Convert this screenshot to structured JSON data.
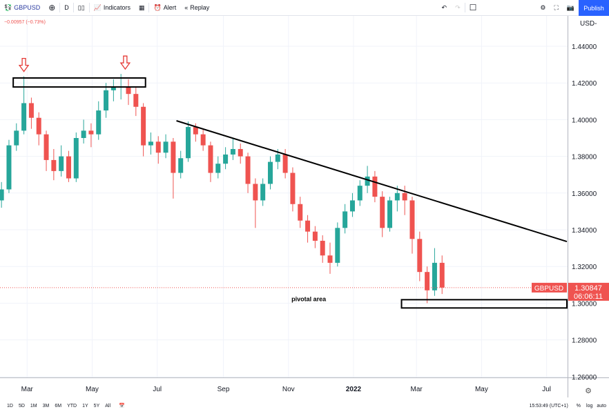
{
  "toolbar": {
    "symbol": "GBPUSD",
    "interval": "D",
    "indicators": "Indicators",
    "alert": "Alert",
    "replay": "Replay",
    "publish": "Publish",
    "icons": [
      "symbol-logo-icon",
      "add-compare-icon",
      "candles-style-icon",
      "indicators-icon",
      "templates-icon",
      "alert-icon",
      "replay-icon",
      "undo-icon",
      "redo-icon",
      "fullscreen-toggle-icon",
      "settings-icon",
      "fullscreen-icon",
      "camera-icon"
    ]
  },
  "legend": {
    "change": "−0.00957 (−0.73%)"
  },
  "price_scale": {
    "currency": "USD",
    "last_symbol": "GBPUSD",
    "last_price": "1.30847",
    "countdown": "06:06:11"
  },
  "bottom": {
    "ranges": [
      "1D",
      "5D",
      "1M",
      "3M",
      "6M",
      "YTD",
      "1Y",
      "5Y",
      "All"
    ],
    "time": "15:53:49 (UTC+1)",
    "pct": "%",
    "log": "log",
    "auto": "auto"
  },
  "colors": {
    "up": "#26a69a",
    "down": "#ef5350",
    "accent": "#2962ff",
    "annotation": "#000000",
    "arrow": "#e53935"
  },
  "chart_data": {
    "type": "candlestick",
    "title": "",
    "ylim": [
      1.255,
      1.455
    ],
    "yticks": [
      "1.44000",
      "1.42000",
      "1.40000",
      "1.38000",
      "1.36000",
      "1.34000",
      "1.32000",
      "1.30000",
      "1.28000",
      "1.26000"
    ],
    "xticks": [
      {
        "label": "Mar",
        "date": "2021-03-01"
      },
      {
        "label": "May",
        "date": "2021-05-01"
      },
      {
        "label": "Jul",
        "date": "2021-07-01"
      },
      {
        "label": "Sep",
        "date": "2021-09-01"
      },
      {
        "label": "Nov",
        "date": "2021-11-01"
      },
      {
        "label": "2022",
        "date": "2022-01-01"
      },
      {
        "label": "Mar",
        "date": "2022-03-01"
      },
      {
        "label": "May",
        "date": "2022-05-01"
      },
      {
        "label": "Jul",
        "date": "2022-07-01"
      }
    ],
    "grid": true,
    "candles": [
      [
        "2021-02-05",
        1.356,
        1.366,
        1.352,
        1.362
      ],
      [
        "2021-02-12",
        1.362,
        1.389,
        1.36,
        1.386
      ],
      [
        "2021-02-19",
        1.386,
        1.398,
        1.383,
        1.394
      ],
      [
        "2021-02-26",
        1.394,
        1.4236,
        1.392,
        1.409
      ],
      [
        "2021-03-05",
        1.409,
        1.412,
        1.395,
        1.401
      ],
      [
        "2021-03-12",
        1.401,
        1.404,
        1.386,
        1.392
      ],
      [
        "2021-03-19",
        1.392,
        1.394,
        1.372,
        1.378
      ],
      [
        "2021-03-26",
        1.378,
        1.384,
        1.367,
        1.372
      ],
      [
        "2021-04-02",
        1.372,
        1.386,
        1.369,
        1.38
      ],
      [
        "2021-04-09",
        1.38,
        1.383,
        1.366,
        1.368
      ],
      [
        "2021-04-16",
        1.368,
        1.393,
        1.366,
        1.39
      ],
      [
        "2021-04-23",
        1.39,
        1.4,
        1.387,
        1.394
      ],
      [
        "2021-04-30",
        1.394,
        1.398,
        1.385,
        1.392
      ],
      [
        "2021-05-07",
        1.392,
        1.41,
        1.389,
        1.405
      ],
      [
        "2021-05-14",
        1.405,
        1.42,
        1.401,
        1.416
      ],
      [
        "2021-05-21",
        1.416,
        1.422,
        1.41,
        1.418
      ],
      [
        "2021-05-28",
        1.418,
        1.4249,
        1.411,
        1.418
      ],
      [
        "2021-06-04",
        1.418,
        1.422,
        1.408,
        1.414
      ],
      [
        "2021-06-11",
        1.414,
        1.418,
        1.402,
        1.407
      ],
      [
        "2021-06-18",
        1.407,
        1.409,
        1.38,
        1.386
      ],
      [
        "2021-06-25",
        1.386,
        1.393,
        1.381,
        1.388
      ],
      [
        "2021-07-02",
        1.388,
        1.391,
        1.376,
        1.382
      ],
      [
        "2021-07-09",
        1.382,
        1.392,
        1.379,
        1.388
      ],
      [
        "2021-07-16",
        1.388,
        1.39,
        1.357,
        1.371
      ],
      [
        "2021-07-23",
        1.371,
        1.383,
        1.368,
        1.379
      ],
      [
        "2021-07-30",
        1.379,
        1.399,
        1.377,
        1.396
      ],
      [
        "2021-08-06",
        1.396,
        1.398,
        1.388,
        1.392
      ],
      [
        "2021-08-13",
        1.392,
        1.395,
        1.383,
        1.386
      ],
      [
        "2021-08-20",
        1.386,
        1.388,
        1.366,
        1.371
      ],
      [
        "2021-08-27",
        1.371,
        1.38,
        1.368,
        1.376
      ],
      [
        "2021-09-03",
        1.376,
        1.385,
        1.373,
        1.381
      ],
      [
        "2021-09-10",
        1.381,
        1.39,
        1.378,
        1.384
      ],
      [
        "2021-09-17",
        1.384,
        1.387,
        1.376,
        1.38
      ],
      [
        "2021-09-24",
        1.38,
        1.382,
        1.36,
        1.365
      ],
      [
        "2021-10-01",
        1.365,
        1.368,
        1.341,
        1.356
      ],
      [
        "2021-10-08",
        1.356,
        1.368,
        1.353,
        1.365
      ],
      [
        "2021-10-15",
        1.365,
        1.38,
        1.362,
        1.377
      ],
      [
        "2021-10-22",
        1.377,
        1.384,
        1.373,
        1.381
      ],
      [
        "2021-10-29",
        1.381,
        1.384,
        1.368,
        1.371
      ],
      [
        "2021-11-05",
        1.371,
        1.374,
        1.35,
        1.354
      ],
      [
        "2021-11-12",
        1.354,
        1.358,
        1.341,
        1.345
      ],
      [
        "2021-11-19",
        1.345,
        1.348,
        1.333,
        1.339
      ],
      [
        "2021-11-26",
        1.339,
        1.342,
        1.33,
        1.334
      ],
      [
        "2021-12-03",
        1.334,
        1.337,
        1.322,
        1.326
      ],
      [
        "2021-12-10",
        1.326,
        1.333,
        1.316,
        1.322
      ],
      [
        "2021-12-17",
        1.322,
        1.344,
        1.32,
        1.341
      ],
      [
        "2021-12-24",
        1.341,
        1.354,
        1.338,
        1.35
      ],
      [
        "2021-12-31",
        1.35,
        1.36,
        1.347,
        1.356
      ],
      [
        "2022-01-07",
        1.356,
        1.367,
        1.353,
        1.364
      ],
      [
        "2022-01-14",
        1.364,
        1.3748,
        1.36,
        1.369
      ],
      [
        "2022-01-21",
        1.369,
        1.372,
        1.355,
        1.358
      ],
      [
        "2022-01-28",
        1.358,
        1.361,
        1.336,
        1.341
      ],
      [
        "2022-02-04",
        1.341,
        1.358,
        1.339,
        1.356
      ],
      [
        "2022-02-11",
        1.356,
        1.364,
        1.35,
        1.36
      ],
      [
        "2022-02-18",
        1.36,
        1.364,
        1.348,
        1.356
      ],
      [
        "2022-02-25",
        1.356,
        1.358,
        1.327,
        1.335
      ],
      [
        "2022-03-04",
        1.335,
        1.339,
        1.312,
        1.317
      ],
      [
        "2022-03-11",
        1.317,
        1.32,
        1.3,
        1.307
      ],
      [
        "2022-03-18",
        1.307,
        1.33,
        1.304,
        1.322
      ],
      [
        "2022-03-25",
        1.322,
        1.326,
        1.305,
        1.3085
      ]
    ],
    "annotations": {
      "resistance_box": {
        "from": "2021-02-16",
        "to": "2021-06-20",
        "top": 1.4227,
        "bottom": 1.4178
      },
      "pivotal_box": {
        "from": "2022-02-15",
        "to": "2022-07-20",
        "top": 1.3019,
        "bottom": 1.2974,
        "label": "pivotal area"
      },
      "trendline": {
        "from": [
          "2021-07-19",
          1.3994
        ],
        "to": [
          "2022-07-20",
          1.3336
        ]
      },
      "arrows": [
        {
          "date": "2021-02-26",
          "price": 1.4236
        },
        {
          "date": "2021-06-01",
          "price": 1.4249
        }
      ]
    }
  }
}
